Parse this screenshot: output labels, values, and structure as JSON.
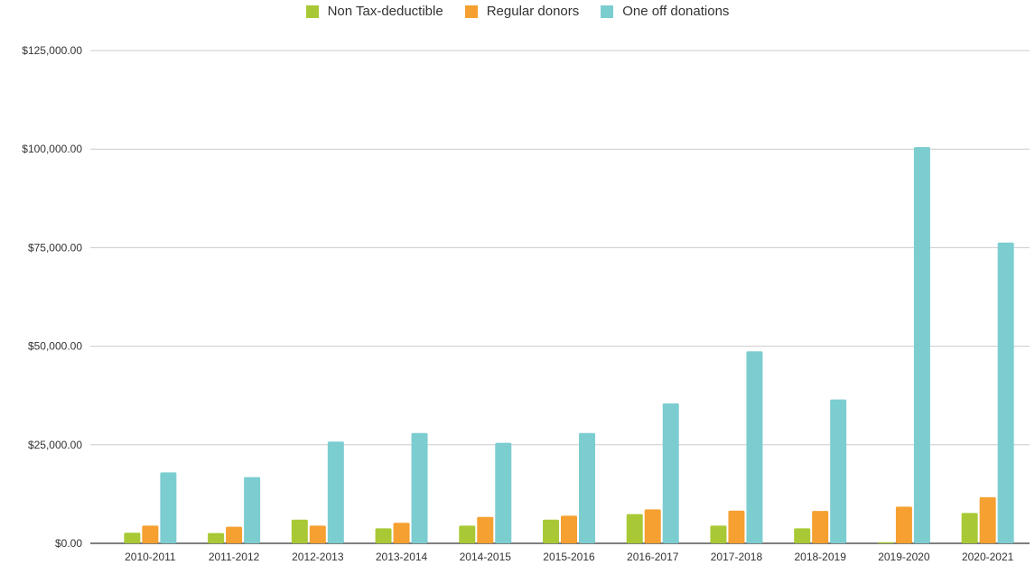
{
  "colors": {
    "non_tax_deductible": "#a8c935",
    "regular_donors": "#f5a030",
    "one_off_donations": "#7ccdd0",
    "grid": "#cccccc",
    "axis": "#333333"
  },
  "chart_data": {
    "type": "bar",
    "categories": [
      "2010-2011",
      "2011-2012",
      "2012-2013",
      "2013-2014",
      "2014-2015",
      "2015-2016",
      "2016-2017",
      "2017-2018",
      "2018-2019",
      "2019-2020",
      "2020-2021"
    ],
    "series": [
      {
        "name": "Non Tax-deductible",
        "values": [
          2700,
          2600,
          6000,
          3800,
          4500,
          6000,
          7400,
          4500,
          3800,
          300,
          7700
        ]
      },
      {
        "name": "Regular donors",
        "values": [
          4500,
          4200,
          4500,
          5200,
          6700,
          7000,
          8600,
          8300,
          8200,
          9300,
          11700
        ]
      },
      {
        "name": "One off donations",
        "values": [
          18000,
          16800,
          25800,
          28000,
          25500,
          28000,
          35500,
          48700,
          36500,
          100500,
          76300
        ]
      }
    ],
    "y_ticks": [
      "$0.00",
      "$25,000.00",
      "$50,000.00",
      "$75,000.00",
      "$100,000.00",
      "$125,000.00"
    ],
    "ylim": [
      0,
      125000
    ],
    "grid": true,
    "legend_position": "top-center",
    "title": "",
    "xlabel": "",
    "ylabel": ""
  }
}
